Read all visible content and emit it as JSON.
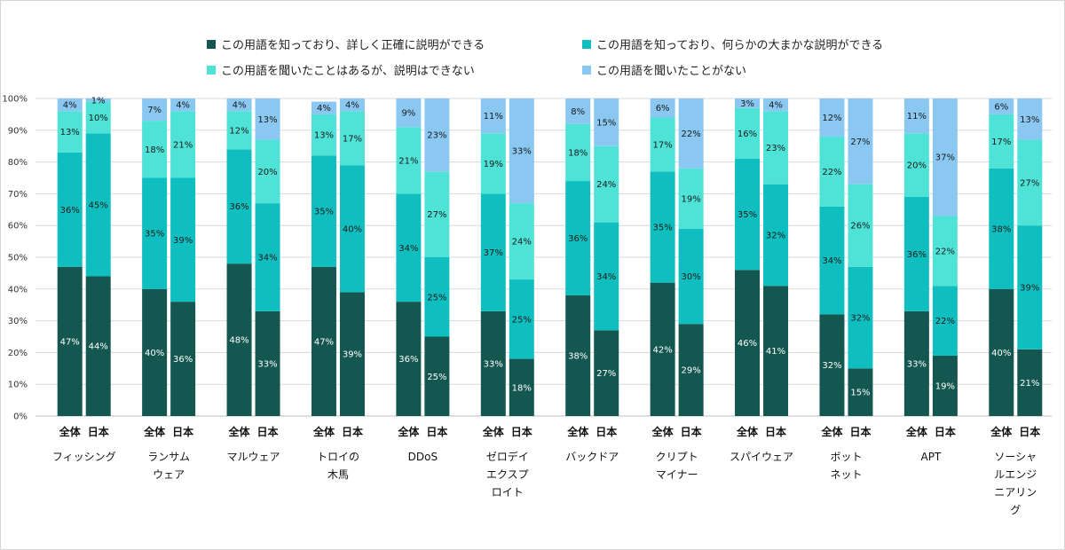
{
  "chart_data": {
    "type": "bar",
    "stacked": true,
    "percent_stacked": true,
    "ylim": [
      0,
      100
    ],
    "y_ticks": [
      "0%",
      "10%",
      "20%",
      "30%",
      "40%",
      "50%",
      "60%",
      "70%",
      "80%",
      "90%",
      "100%"
    ],
    "grid": true,
    "legend_position": "top",
    "series": [
      {
        "name": "この用語を知っており、詳しく正確に説明ができる",
        "color": "#145751"
      },
      {
        "name": "この用語を知っており、何らかの大まかな説明ができる",
        "color": "#0fbfbf"
      },
      {
        "name": "この用語を聞いたことはあるが、説明はできない",
        "color": "#4fe3d8"
      },
      {
        "name": "この用語を聞いたことがない",
        "color": "#8ac8f2"
      }
    ],
    "groups": [
      {
        "label_lines": [
          "フィッシング"
        ],
        "bars": [
          {
            "label": "全体",
            "values": [
              47,
              36,
              13,
              4
            ]
          },
          {
            "label": "日本",
            "values": [
              44,
              45,
              10,
              1
            ]
          }
        ]
      },
      {
        "label_lines": [
          "ランサム",
          "ウェア"
        ],
        "bars": [
          {
            "label": "全体",
            "values": [
              40,
              35,
              18,
              7
            ]
          },
          {
            "label": "日本",
            "values": [
              36,
              39,
              21,
              4
            ]
          }
        ]
      },
      {
        "label_lines": [
          "マルウェア"
        ],
        "bars": [
          {
            "label": "全体",
            "values": [
              48,
              36,
              12,
              4
            ]
          },
          {
            "label": "日本",
            "values": [
              33,
              34,
              20,
              13
            ]
          }
        ]
      },
      {
        "label_lines": [
          "トロイの",
          "木馬"
        ],
        "bars": [
          {
            "label": "全体",
            "values": [
              47,
              35,
              13,
              4
            ]
          },
          {
            "label": "日本",
            "values": [
              39,
              40,
              17,
              4
            ]
          }
        ]
      },
      {
        "label_lines": [
          "DDoS"
        ],
        "bars": [
          {
            "label": "全体",
            "values": [
              36,
              34,
              21,
              9
            ]
          },
          {
            "label": "日本",
            "values": [
              25,
              25,
              27,
              23
            ]
          }
        ]
      },
      {
        "label_lines": [
          "ゼロデイ",
          "エクスプ",
          "ロイト"
        ],
        "bars": [
          {
            "label": "全体",
            "values": [
              33,
              37,
              19,
              11
            ]
          },
          {
            "label": "日本",
            "values": [
              18,
              25,
              24,
              33
            ]
          }
        ]
      },
      {
        "label_lines": [
          "バックドア"
        ],
        "bars": [
          {
            "label": "全体",
            "values": [
              38,
              36,
              18,
              8
            ]
          },
          {
            "label": "日本",
            "values": [
              27,
              34,
              24,
              15
            ]
          }
        ]
      },
      {
        "label_lines": [
          "クリプト",
          "マイナー"
        ],
        "bars": [
          {
            "label": "全体",
            "values": [
              42,
              35,
              17,
              6
            ]
          },
          {
            "label": "日本",
            "values": [
              29,
              30,
              19,
              22
            ]
          }
        ]
      },
      {
        "label_lines": [
          "スパイウェア"
        ],
        "bars": [
          {
            "label": "全体",
            "values": [
              46,
              35,
              16,
              3
            ]
          },
          {
            "label": "日本",
            "values": [
              41,
              32,
              23,
              4
            ]
          }
        ]
      },
      {
        "label_lines": [
          "ボット",
          "ネット"
        ],
        "bars": [
          {
            "label": "全体",
            "values": [
              32,
              34,
              22,
              12
            ]
          },
          {
            "label": "日本",
            "values": [
              15,
              32,
              26,
              27
            ]
          }
        ]
      },
      {
        "label_lines": [
          "APT"
        ],
        "bars": [
          {
            "label": "全体",
            "values": [
              33,
              36,
              20,
              11
            ]
          },
          {
            "label": "日本",
            "values": [
              19,
              22,
              22,
              37
            ]
          }
        ]
      },
      {
        "label_lines": [
          "ソーシャ",
          "ルエンジ",
          "ニアリン",
          "グ"
        ],
        "bars": [
          {
            "label": "全体",
            "values": [
              40,
              38,
              17,
              6
            ]
          },
          {
            "label": "日本",
            "values": [
              21,
              39,
              27,
              13
            ]
          }
        ]
      }
    ]
  }
}
